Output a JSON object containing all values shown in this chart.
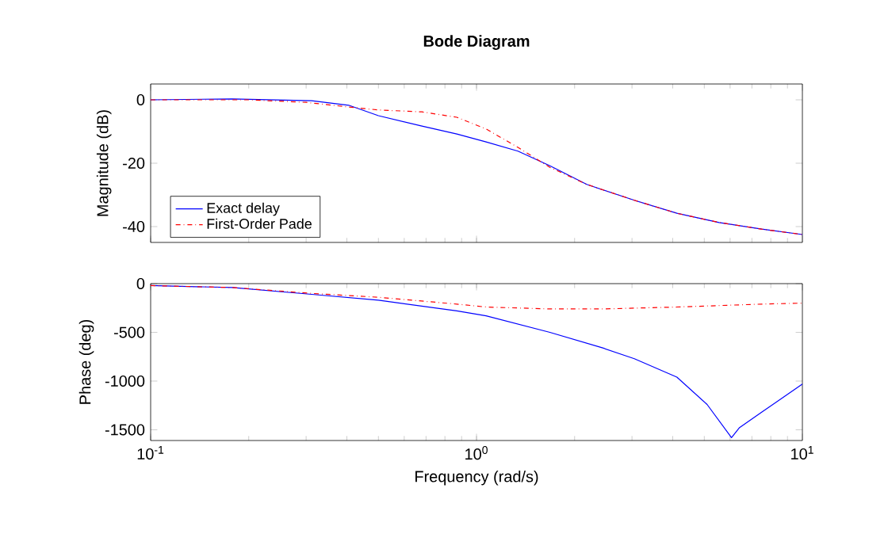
{
  "chart_data": [
    {
      "type": "line",
      "title": "Bode Diagram",
      "ylabel": "Magnitude (dB)",
      "log": "x",
      "xlim": [
        0.1,
        10
      ],
      "ylim": [
        -45,
        5
      ],
      "xticks": [
        {
          "value": 0.1,
          "label": null
        },
        {
          "value": 1,
          "label": null
        },
        {
          "value": 10,
          "label": null
        }
      ],
      "yticks": [
        -40,
        -20,
        0
      ],
      "tick_labels": "y",
      "grid": false,
      "legend": "bottom left",
      "series": [
        {
          "name": "Exact delay",
          "color": "#0000ff",
          "line_style": "solid",
          "x": [
            0.1,
            0.178,
            0.312,
            0.405,
            0.5,
            0.68,
            0.87,
            1.07,
            1.34,
            1.68,
            2.18,
            3.05,
            4.12,
            5.55,
            7.5,
            10
          ],
          "values": [
            0,
            0.3,
            -0.3,
            -1.7,
            -5,
            -8.3,
            -10.8,
            -13.3,
            -16.2,
            -20.8,
            -26.7,
            -31.7,
            -35.8,
            -38.7,
            -40.8,
            -42.5
          ]
        },
        {
          "name": "First-Order Pade",
          "color": "#ff0000",
          "line_style": "dashdot",
          "x": [
            0.1,
            0.2,
            0.3,
            0.4,
            0.5,
            0.68,
            0.87,
            1.07,
            1.34,
            1.68,
            2.18,
            3.05,
            4.12,
            5.55,
            7.5,
            10
          ],
          "values": [
            0,
            0,
            -0.8,
            -2.2,
            -3.2,
            -3.8,
            -5.5,
            -9.2,
            -15,
            -21.3,
            -26.7,
            -31.7,
            -35.8,
            -38.7,
            -40.8,
            -42.5
          ]
        }
      ]
    },
    {
      "type": "line",
      "xlabel": "Frequency (rad/s)",
      "ylabel": "Phase (deg)",
      "log": "x",
      "xlim": [
        0.1,
        10
      ],
      "ylim": [
        -1610,
        0
      ],
      "xticks": [
        {
          "value": 0.1,
          "label": "10$^{-1}$"
        },
        {
          "value": 1,
          "label": "10$^{0}$"
        },
        {
          "value": 10,
          "label": "10$^{1}$"
        }
      ],
      "yticks": [
        -1500,
        -1000,
        -500,
        0
      ],
      "grid": false,
      "series": [
        {
          "color": "#0000ff",
          "line_style": "solid",
          "x": [
            0.1,
            0.178,
            0.312,
            0.5,
            0.87,
            1.07,
            1.68,
            2.44,
            3.05,
            4.12,
            5.1,
            6.06,
            6.4,
            7.5,
            10
          ],
          "values": [
            -20,
            -40,
            -110,
            -170,
            -280,
            -330,
            -500,
            -660,
            -770,
            -960,
            -1240,
            -1580,
            -1480,
            -1320,
            -1030
          ]
        },
        {
          "color": "#ff0000",
          "line_style": "dashdot",
          "x": [
            0.1,
            0.178,
            0.312,
            0.5,
            0.87,
            1.07,
            1.68,
            2.44,
            4.12,
            7.5,
            10
          ],
          "values": [
            -20,
            -40,
            -100,
            -140,
            -210,
            -240,
            -260,
            -260,
            -240,
            -210,
            -200
          ]
        }
      ]
    }
  ]
}
